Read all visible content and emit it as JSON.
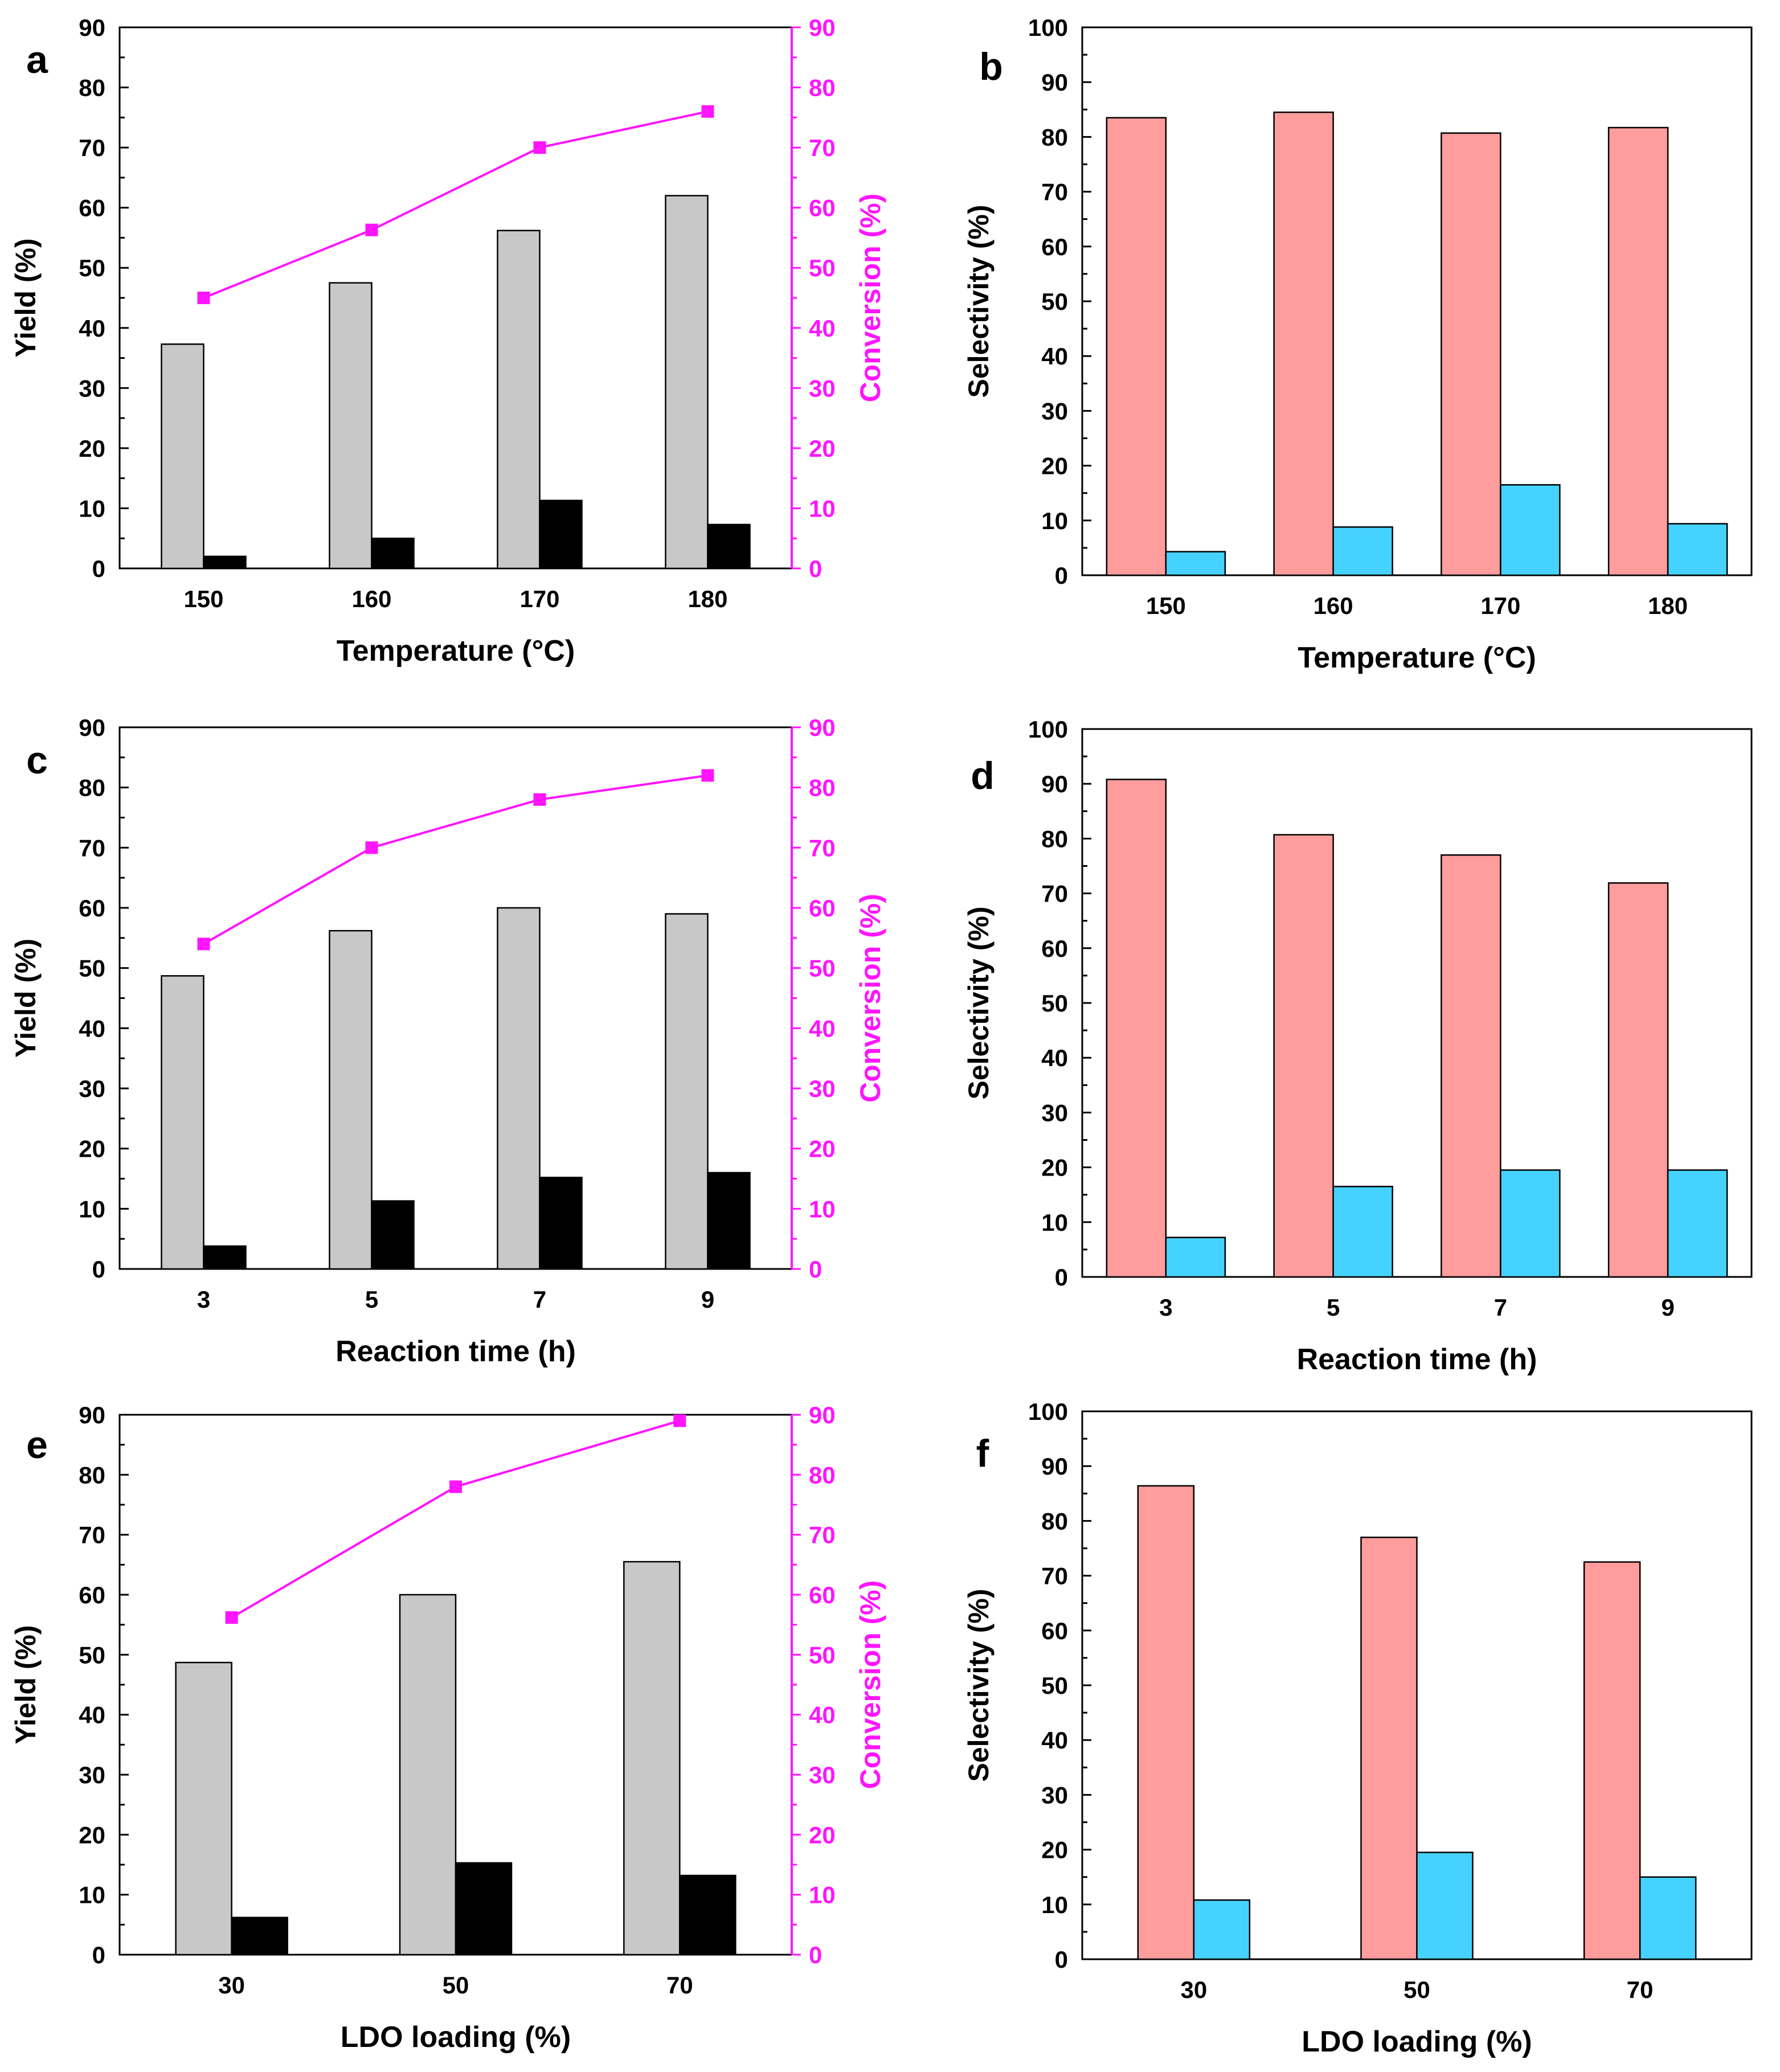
{
  "colors": {
    "yield_gray": "#c8c8c8",
    "yield_black": "#000000",
    "conversion": "#ff14ff",
    "sel_red": "#ff9c9c",
    "sel_blue": "#46d2ff",
    "axis": "#000000"
  },
  "chart_data": [
    {
      "type": "bar",
      "panel": "a",
      "categories": [
        "150",
        "160",
        "170",
        "180"
      ],
      "series": [
        {
          "name": "Yield (gray)",
          "axis": "left",
          "color": "#c8c8c8",
          "values": [
            37.3,
            47.5,
            56.2,
            62.0
          ]
        },
        {
          "name": "Yield (black)",
          "axis": "left",
          "color": "#000000",
          "values": [
            2.0,
            5.0,
            11.3,
            7.3
          ]
        },
        {
          "name": "Conversion",
          "axis": "right",
          "type": "line",
          "color": "#ff14ff",
          "values": [
            45.0,
            56.3,
            70.0,
            76.0
          ]
        }
      ],
      "xlabel": "Temperature (°C)",
      "ylabel": "Yield (%)",
      "y2label": "Conversion (%)",
      "ylim": [
        0,
        90
      ],
      "y2lim": [
        0,
        90
      ],
      "yticks": [
        0,
        10,
        20,
        30,
        40,
        50,
        60,
        70,
        80,
        90
      ],
      "y2ticks": [
        0,
        10,
        20,
        30,
        40,
        50,
        60,
        70,
        80,
        90
      ]
    },
    {
      "type": "bar",
      "panel": "b",
      "categories": [
        "150",
        "160",
        "170",
        "180"
      ],
      "series": [
        {
          "name": "Selectivity (red)",
          "color": "#ff9c9c",
          "values": [
            83.5,
            84.5,
            80.7,
            81.7
          ]
        },
        {
          "name": "Selectivity (blue)",
          "color": "#46d2ff",
          "values": [
            4.3,
            8.8,
            16.5,
            9.4
          ]
        }
      ],
      "xlabel": "Temperature (°C)",
      "ylabel": "Selectivity (%)",
      "ylim": [
        0,
        100
      ],
      "yticks": [
        0,
        10,
        20,
        30,
        40,
        50,
        60,
        70,
        80,
        90,
        100
      ]
    },
    {
      "type": "bar",
      "panel": "c",
      "categories": [
        "3",
        "5",
        "7",
        "9"
      ],
      "series": [
        {
          "name": "Yield (gray)",
          "axis": "left",
          "color": "#c8c8c8",
          "values": [
            48.7,
            56.2,
            60.0,
            59.0
          ]
        },
        {
          "name": "Yield (black)",
          "axis": "left",
          "color": "#000000",
          "values": [
            3.8,
            11.3,
            15.2,
            16.0
          ]
        },
        {
          "name": "Conversion",
          "axis": "right",
          "type": "line",
          "color": "#ff14ff",
          "values": [
            54.0,
            70.0,
            78.0,
            82.0
          ]
        }
      ],
      "xlabel": "Reaction time (h)",
      "ylabel": "Yield (%)",
      "y2label": "Conversion (%)",
      "ylim": [
        0,
        90
      ],
      "y2lim": [
        0,
        90
      ],
      "yticks": [
        0,
        10,
        20,
        30,
        40,
        50,
        60,
        70,
        80,
        90
      ],
      "y2ticks": [
        0,
        10,
        20,
        30,
        40,
        50,
        60,
        70,
        80,
        90
      ]
    },
    {
      "type": "bar",
      "panel": "d",
      "categories": [
        "3",
        "5",
        "7",
        "9"
      ],
      "series": [
        {
          "name": "Selectivity (red)",
          "color": "#ff9c9c",
          "values": [
            90.8,
            80.7,
            77.0,
            71.9
          ]
        },
        {
          "name": "Selectivity (blue)",
          "color": "#46d2ff",
          "values": [
            7.2,
            16.5,
            19.5,
            19.5
          ]
        }
      ],
      "xlabel": "Reaction time (h)",
      "ylabel": "Selectivity (%)",
      "ylim": [
        0,
        100
      ],
      "yticks": [
        0,
        10,
        20,
        30,
        40,
        50,
        60,
        70,
        80,
        90,
        100
      ]
    },
    {
      "type": "bar",
      "panel": "e",
      "categories": [
        "30",
        "50",
        "70"
      ],
      "series": [
        {
          "name": "Yield (gray)",
          "axis": "left",
          "color": "#c8c8c8",
          "values": [
            48.7,
            60.0,
            65.5
          ]
        },
        {
          "name": "Yield (black)",
          "axis": "left",
          "color": "#000000",
          "values": [
            6.2,
            15.3,
            13.2
          ]
        },
        {
          "name": "Conversion",
          "axis": "right",
          "type": "line",
          "color": "#ff14ff",
          "values": [
            56.2,
            78.0,
            89.0
          ]
        }
      ],
      "xlabel": "LDO loading (%)",
      "ylabel": "Yield (%)",
      "y2label": "Conversion (%)",
      "ylim": [
        0,
        90
      ],
      "y2lim": [
        0,
        90
      ],
      "yticks": [
        0,
        10,
        20,
        30,
        40,
        50,
        60,
        70,
        80,
        90
      ],
      "y2ticks": [
        0,
        10,
        20,
        30,
        40,
        50,
        60,
        70,
        80,
        90
      ]
    },
    {
      "type": "bar",
      "panel": "f",
      "categories": [
        "30",
        "50",
        "70"
      ],
      "series": [
        {
          "name": "Selectivity (red)",
          "color": "#ff9c9c",
          "values": [
            86.4,
            77.0,
            72.5
          ]
        },
        {
          "name": "Selectivity (blue)",
          "color": "#46d2ff",
          "values": [
            10.8,
            19.5,
            15.0
          ]
        }
      ],
      "xlabel": "LDO loading (%)",
      "ylabel": "Selectivity (%)",
      "ylim": [
        0,
        100
      ],
      "yticks": [
        0,
        10,
        20,
        30,
        40,
        50,
        60,
        70,
        80,
        90,
        100
      ]
    }
  ]
}
